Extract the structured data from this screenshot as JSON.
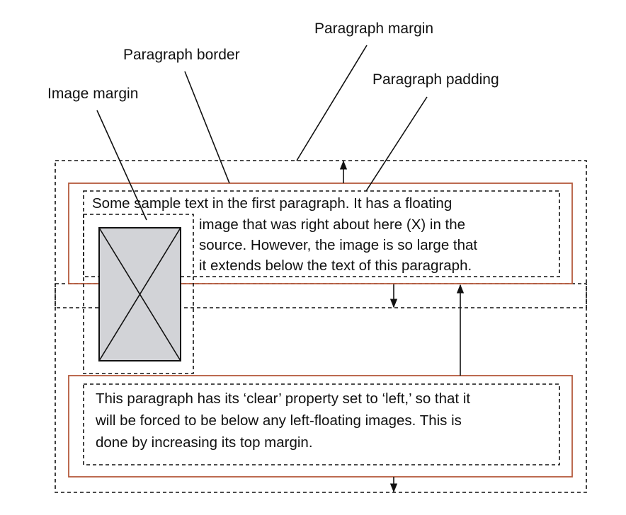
{
  "labels": {
    "paragraph_margin": "Paragraph margin",
    "paragraph_border": "Paragraph border",
    "paragraph_padding": "Paragraph padding",
    "image_margin": "Image margin"
  },
  "paragraph1": {
    "lines": [
      "Some sample text in the first paragraph. It has a floating",
      "image that was right about here (X) in the",
      "source. However, the image is so large that",
      "it extends below the text of this paragraph."
    ]
  },
  "paragraph2": {
    "lines": [
      "This paragraph has its ‘clear’ property set to ‘left,’ so that it",
      "will be forced to be below any left-floating images. This is",
      "done by increasing its top margin."
    ]
  },
  "colors": {
    "border": "#b55a3c",
    "dashed": "#111111",
    "image_fill": "#d2d3d7",
    "text": "#111111"
  }
}
